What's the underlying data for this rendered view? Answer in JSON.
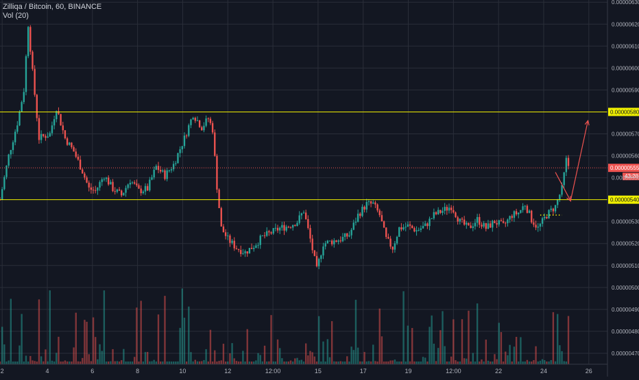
{
  "header": {
    "symbol_line": "Zilliqa / Bitcoin, 60, BINANCE",
    "volume_label": "Vol (20)"
  },
  "colors": {
    "background": "#131722",
    "grid": "#2a2e39",
    "up": "#26a69a",
    "down": "#ef5350",
    "level_line": "#f0f000",
    "price_line": "#ef5350",
    "annotation_arrow": "#ef5350",
    "axis_text": "#b2b5be"
  },
  "chart_data": {
    "type": "candlestick",
    "title": "Zilliqa / Bitcoin, 60, BINANCE",
    "y_axis": {
      "ylim": [
        4.65e-06,
        6.31e-06
      ],
      "tick_labels": [
        "0.00000630",
        "0.00000620",
        "0.00000610",
        "0.00000600",
        "0.00000590",
        "0.00000570",
        "0.00000560",
        "0.00000550",
        "0.00000530",
        "0.00000520",
        "0.00000510",
        "0.00000500",
        "0.00000490",
        "0.00000480",
        "0.00000470"
      ],
      "position": "right"
    },
    "x_axis": {
      "tick_labels": [
        "2",
        "4",
        "6",
        "8",
        "10",
        "12",
        "12:00",
        "15",
        "17",
        "19",
        "12:00",
        "22",
        "24",
        "26"
      ],
      "xlim": [
        0,
        28
      ]
    },
    "horizontal_levels": [
      {
        "label": "0.00000580",
        "value": 5.8e-06,
        "color": "#f0f000"
      },
      {
        "label": "0.00000540",
        "value": 5.4e-06,
        "color": "#f0f000"
      }
    ],
    "current_price": {
      "label": "0.00000555",
      "value": 5.545e-06,
      "countdown": "43:28"
    },
    "projection_arrow": [
      {
        "x": 25.6,
        "y": 5.525e-06
      },
      {
        "x": 26.3,
        "y": 5.395e-06
      },
      {
        "x": 27.1,
        "y": 5.76e-06
      }
    ],
    "support_dots": {
      "x_from": 24.9,
      "x_to": 25.9,
      "value": 5.33e-06
    },
    "price_path": [
      [
        0,
        5.4e-06
      ],
      [
        0.4,
        5.6e-06
      ],
      [
        0.8,
        5.75e-06
      ],
      [
        1.1,
        5.9e-06
      ],
      [
        1.3,
        6.2e-06
      ],
      [
        1.5,
        5.98e-06
      ],
      [
        1.8,
        5.68e-06
      ],
      [
        2.3,
        5.7e-06
      ],
      [
        2.6,
        5.82e-06
      ],
      [
        3.0,
        5.68e-06
      ],
      [
        3.4,
        5.62e-06
      ],
      [
        3.8,
        5.53e-06
      ],
      [
        4.1,
        5.45e-06
      ],
      [
        4.4,
        5.44e-06
      ],
      [
        4.8,
        5.51e-06
      ],
      [
        5.2,
        5.45e-06
      ],
      [
        5.6,
        5.42e-06
      ],
      [
        6.0,
        5.49e-06
      ],
      [
        6.4,
        5.44e-06
      ],
      [
        6.8,
        5.45e-06
      ],
      [
        7.2,
        5.55e-06
      ],
      [
        7.6,
        5.51e-06
      ],
      [
        8.0,
        5.56e-06
      ],
      [
        8.5,
        5.68e-06
      ],
      [
        8.9,
        5.79e-06
      ],
      [
        9.3,
        5.73e-06
      ],
      [
        9.6,
        5.77e-06
      ],
      [
        9.8,
        5.72e-06
      ],
      [
        10.0,
        5.46e-06
      ],
      [
        10.2,
        5.27e-06
      ],
      [
        10.5,
        5.22e-06
      ],
      [
        10.9,
        5.18e-06
      ],
      [
        11.3,
        5.16e-06
      ],
      [
        11.7,
        5.19e-06
      ],
      [
        12.1,
        5.23e-06
      ],
      [
        12.5,
        5.25e-06
      ],
      [
        12.9,
        5.27e-06
      ],
      [
        13.3,
        5.28e-06
      ],
      [
        13.7,
        5.3e-06
      ],
      [
        14.0,
        5.35e-06
      ],
      [
        14.3,
        5.22e-06
      ],
      [
        14.6,
        5.08e-06
      ],
      [
        14.9,
        5.2e-06
      ],
      [
        15.3,
        5.21e-06
      ],
      [
        15.7,
        5.22e-06
      ],
      [
        16.1,
        5.24e-06
      ],
      [
        16.5,
        5.33e-06
      ],
      [
        16.9,
        5.38e-06
      ],
      [
        17.2,
        5.38e-06
      ],
      [
        17.5,
        5.33e-06
      ],
      [
        17.8,
        5.22e-06
      ],
      [
        18.1,
        5.18e-06
      ],
      [
        18.4,
        5.27e-06
      ],
      [
        18.8,
        5.28e-06
      ],
      [
        19.2,
        5.26e-06
      ],
      [
        19.6,
        5.28e-06
      ],
      [
        20.0,
        5.33e-06
      ],
      [
        20.4,
        5.35e-06
      ],
      [
        20.8,
        5.37e-06
      ],
      [
        21.2,
        5.3e-06
      ],
      [
        21.6,
        5.27e-06
      ],
      [
        22.0,
        5.31e-06
      ],
      [
        22.4,
        5.27e-06
      ],
      [
        22.8,
        5.3e-06
      ],
      [
        23.2,
        5.28e-06
      ],
      [
        23.6,
        5.33e-06
      ],
      [
        23.9,
        5.34e-06
      ],
      [
        24.2,
        5.38e-06
      ],
      [
        24.5,
        5.31e-06
      ],
      [
        24.8,
        5.27e-06
      ],
      [
        25.2,
        5.33e-06
      ],
      [
        25.6,
        5.37e-06
      ],
      [
        25.9,
        5.45e-06
      ],
      [
        26.1,
        5.58e-06
      ],
      [
        26.3,
        5.53e-06
      ]
    ]
  }
}
